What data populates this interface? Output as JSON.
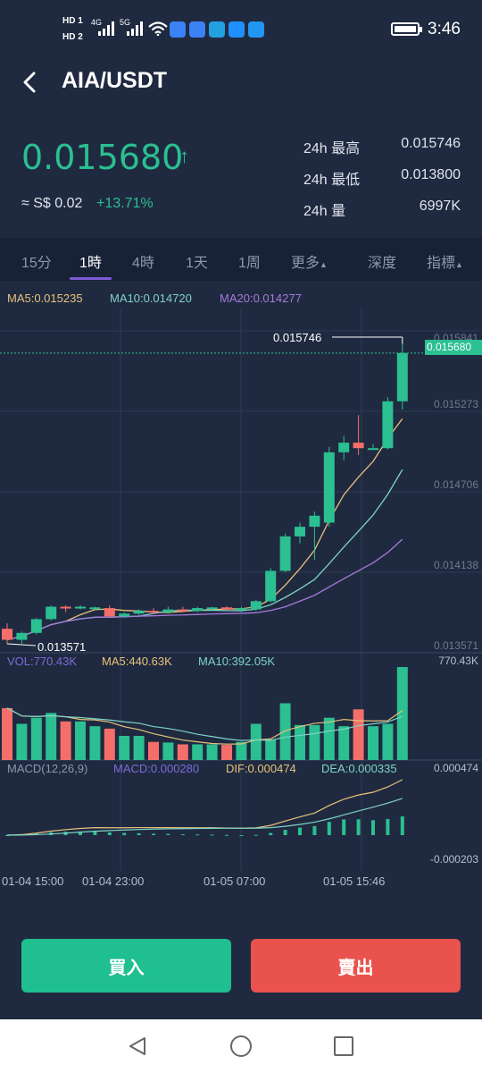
{
  "status_bar": {
    "hd1": "HD 1",
    "hd2": "HD 2",
    "signal1": "4G",
    "signal2": "5G",
    "time": "3:46",
    "app_icon_colors": [
      "#3b82f6",
      "#3b82f6",
      "#22a0e0",
      "#1e90ff",
      "#2196f3"
    ]
  },
  "header": {
    "title": "AIA/USDT"
  },
  "ticker": {
    "last_price": "0.015680",
    "arrow": "↑",
    "fiat_value": "≈ S$ 0.02",
    "change_pct": "+13.71%",
    "stats": [
      {
        "label": "24h 最高",
        "value": "0.015746"
      },
      {
        "label": "24h 最低",
        "value": "0.013800"
      },
      {
        "label": "24h 量",
        "value": "6997K"
      }
    ]
  },
  "tabs": {
    "items": [
      "15分",
      "1時",
      "4時",
      "1天",
      "1周",
      "更多",
      "深度",
      "指標"
    ],
    "active": "1時"
  },
  "chart": {
    "ma_legend": {
      "ma5": "MA5:0.015235",
      "ma10": "MA10:0.014720",
      "ma20": "MA20:0.014277"
    },
    "price_axis": [
      "0.015841",
      "0.015273",
      "0.014706",
      "0.014138",
      "0.013571"
    ],
    "current_price_tag": "0.015680",
    "high_marker": "0.015746",
    "low_marker": "0.013571",
    "vol_legend": {
      "vol": "VOL:770.43K",
      "ma5": "MA5:440.63K",
      "ma10": "MA10:392.05K"
    },
    "vol_axis_max": "770.43K",
    "macd_legend": {
      "params": "MACD(12,26,9)",
      "macd": "MACD:0.000280",
      "dif": "DIF:0.000474",
      "dea": "DEA:0.000335"
    },
    "macd_axis_top": "0.000474",
    "macd_axis_bottom": "-0.000203",
    "x_labels": [
      "01-04 15:00",
      "01-04 23:00",
      "01-05 07:00",
      "01-05 15:46"
    ],
    "colors": {
      "up": "#2bbf91",
      "down": "#f46e6a",
      "ma5": "#e8c27a",
      "ma10": "#7ed3c6",
      "ma20": "#a57ad9"
    }
  },
  "chart_data": {
    "type": "candlestick",
    "candles": [
      {
        "o": 0.01368,
        "h": 0.01372,
        "l": 0.013571,
        "c": 0.0136
      },
      {
        "o": 0.0136,
        "h": 0.01366,
        "l": 0.013571,
        "c": 0.01365
      },
      {
        "o": 0.01365,
        "h": 0.01376,
        "l": 0.01364,
        "c": 0.01375
      },
      {
        "o": 0.01375,
        "h": 0.01385,
        "l": 0.01374,
        "c": 0.01384
      },
      {
        "o": 0.01384,
        "h": 0.01385,
        "l": 0.0138,
        "c": 0.01383
      },
      {
        "o": 0.01383,
        "h": 0.01385,
        "l": 0.01382,
        "c": 0.01384
      },
      {
        "o": 0.01383,
        "h": 0.01384,
        "l": 0.01382,
        "c": 0.013835
      },
      {
        "o": 0.01383,
        "h": 0.01385,
        "l": 0.01376,
        "c": 0.01377
      },
      {
        "o": 0.01377,
        "h": 0.0138,
        "l": 0.01376,
        "c": 0.01379
      },
      {
        "o": 0.01379,
        "h": 0.01382,
        "l": 0.01378,
        "c": 0.01381
      },
      {
        "o": 0.01381,
        "h": 0.01383,
        "l": 0.01379,
        "c": 0.0138
      },
      {
        "o": 0.0138,
        "h": 0.01384,
        "l": 0.01379,
        "c": 0.01382
      },
      {
        "o": 0.01382,
        "h": 0.01384,
        "l": 0.0138,
        "c": 0.01381
      },
      {
        "o": 0.01381,
        "h": 0.01384,
        "l": 0.0138,
        "c": 0.01383
      },
      {
        "o": 0.01383,
        "h": 0.01384,
        "l": 0.01381,
        "c": 0.013835
      },
      {
        "o": 0.013835,
        "h": 0.013845,
        "l": 0.013815,
        "c": 0.01382
      },
      {
        "o": 0.01382,
        "h": 0.01384,
        "l": 0.0138,
        "c": 0.01383
      },
      {
        "o": 0.01382,
        "h": 0.01389,
        "l": 0.01381,
        "c": 0.01388
      },
      {
        "o": 0.01388,
        "h": 0.01412,
        "l": 0.01387,
        "c": 0.0141
      },
      {
        "o": 0.0141,
        "h": 0.01437,
        "l": 0.01409,
        "c": 0.01435
      },
      {
        "o": 0.01435,
        "h": 0.01445,
        "l": 0.0143,
        "c": 0.01442
      },
      {
        "o": 0.01442,
        "h": 0.01453,
        "l": 0.01418,
        "c": 0.0145
      },
      {
        "o": 0.01445,
        "h": 0.015,
        "l": 0.01442,
        "c": 0.01496
      },
      {
        "o": 0.01496,
        "h": 0.01508,
        "l": 0.0149,
        "c": 0.01503
      },
      {
        "o": 0.01503,
        "h": 0.01523,
        "l": 0.01494,
        "c": 0.01499
      },
      {
        "o": 0.01499,
        "h": 0.01502,
        "l": 0.01498,
        "c": 0.01499
      },
      {
        "o": 0.01499,
        "h": 0.01536,
        "l": 0.01498,
        "c": 0.01533
      },
      {
        "o": 0.01533,
        "h": 0.015746,
        "l": 0.01527,
        "c": 0.01568
      }
    ],
    "volume": [
      430,
      300,
      350,
      390,
      320,
      320,
      280,
      260,
      200,
      200,
      150,
      145,
      130,
      130,
      130,
      125,
      150,
      300,
      170,
      470,
      290,
      290,
      350,
      280,
      420,
      280,
      300,
      770
    ],
    "ylim": [
      0.013571,
      0.015841
    ]
  }
}
